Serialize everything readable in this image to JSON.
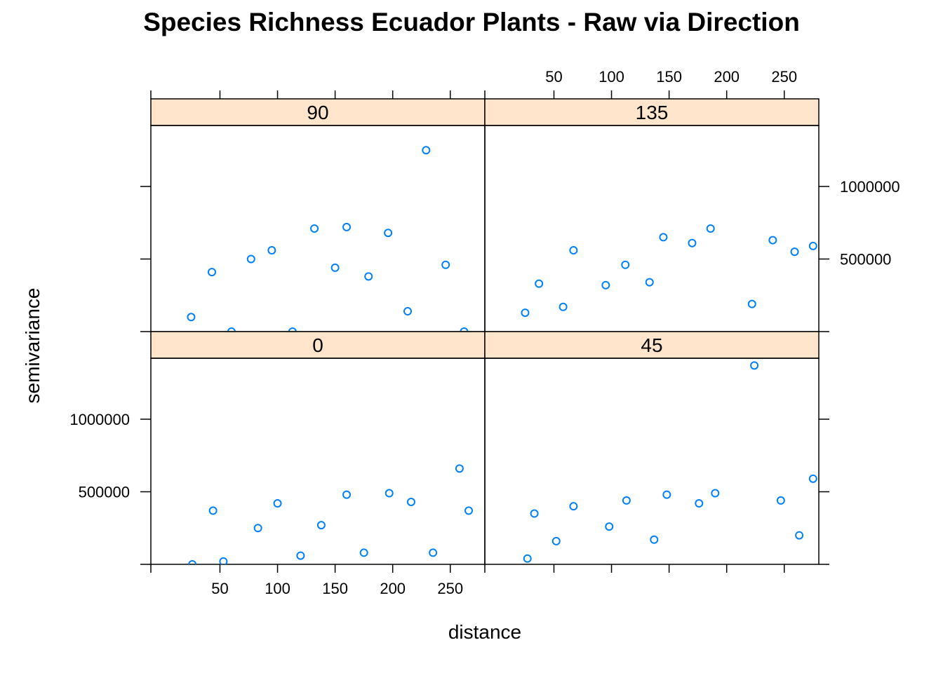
{
  "chart_data": {
    "type": "scatter",
    "title": "Species Richness Ecuador Plants - Raw via Direction",
    "xlabel": "distance",
    "ylabel": "semivariance",
    "xlim": [
      -10,
      280
    ],
    "ylim": [
      0,
      1420000
    ],
    "x_ticks": [
      50,
      100,
      150,
      200,
      250
    ],
    "x_tick_labels": [
      "50",
      "100",
      "150",
      "200",
      "250"
    ],
    "y_ticks": [
      500000,
      1000000
    ],
    "y_tick_labels": [
      "500000",
      "1000000"
    ],
    "point_color": "#0080ff",
    "strip_color": "#ffe5cc",
    "panels": [
      {
        "name": "90",
        "x": [
          25,
          43,
          60,
          77,
          95,
          113,
          132,
          150,
          160,
          179,
          196,
          213,
          229,
          246,
          262
        ],
        "y": [
          100000,
          410000,
          0,
          500000,
          560000,
          0,
          710000,
          440000,
          720000,
          380000,
          680000,
          140000,
          1250000,
          460000,
          0
        ]
      },
      {
        "name": "135",
        "x": [
          25,
          37,
          58,
          67,
          95,
          112,
          133,
          145,
          170,
          186,
          222,
          240,
          259,
          275
        ],
        "y": [
          130000,
          330000,
          170000,
          560000,
          320000,
          460000,
          340000,
          650000,
          610000,
          710000,
          190000,
          630000,
          550000,
          590000
        ]
      },
      {
        "name": "0",
        "x": [
          26,
          44,
          53,
          83,
          100,
          120,
          138,
          160,
          175,
          197,
          216,
          235,
          258,
          266
        ],
        "y": [
          0,
          370000,
          20000,
          250000,
          420000,
          60000,
          270000,
          480000,
          80000,
          490000,
          430000,
          80000,
          660000,
          370000
        ]
      },
      {
        "name": "45",
        "x": [
          27,
          33,
          52,
          67,
          98,
          113,
          137,
          148,
          176,
          190,
          224,
          247,
          263,
          275
        ],
        "y": [
          40000,
          350000,
          160000,
          400000,
          260000,
          440000,
          170000,
          480000,
          420000,
          490000,
          1370000,
          440000,
          200000,
          590000
        ]
      }
    ]
  }
}
